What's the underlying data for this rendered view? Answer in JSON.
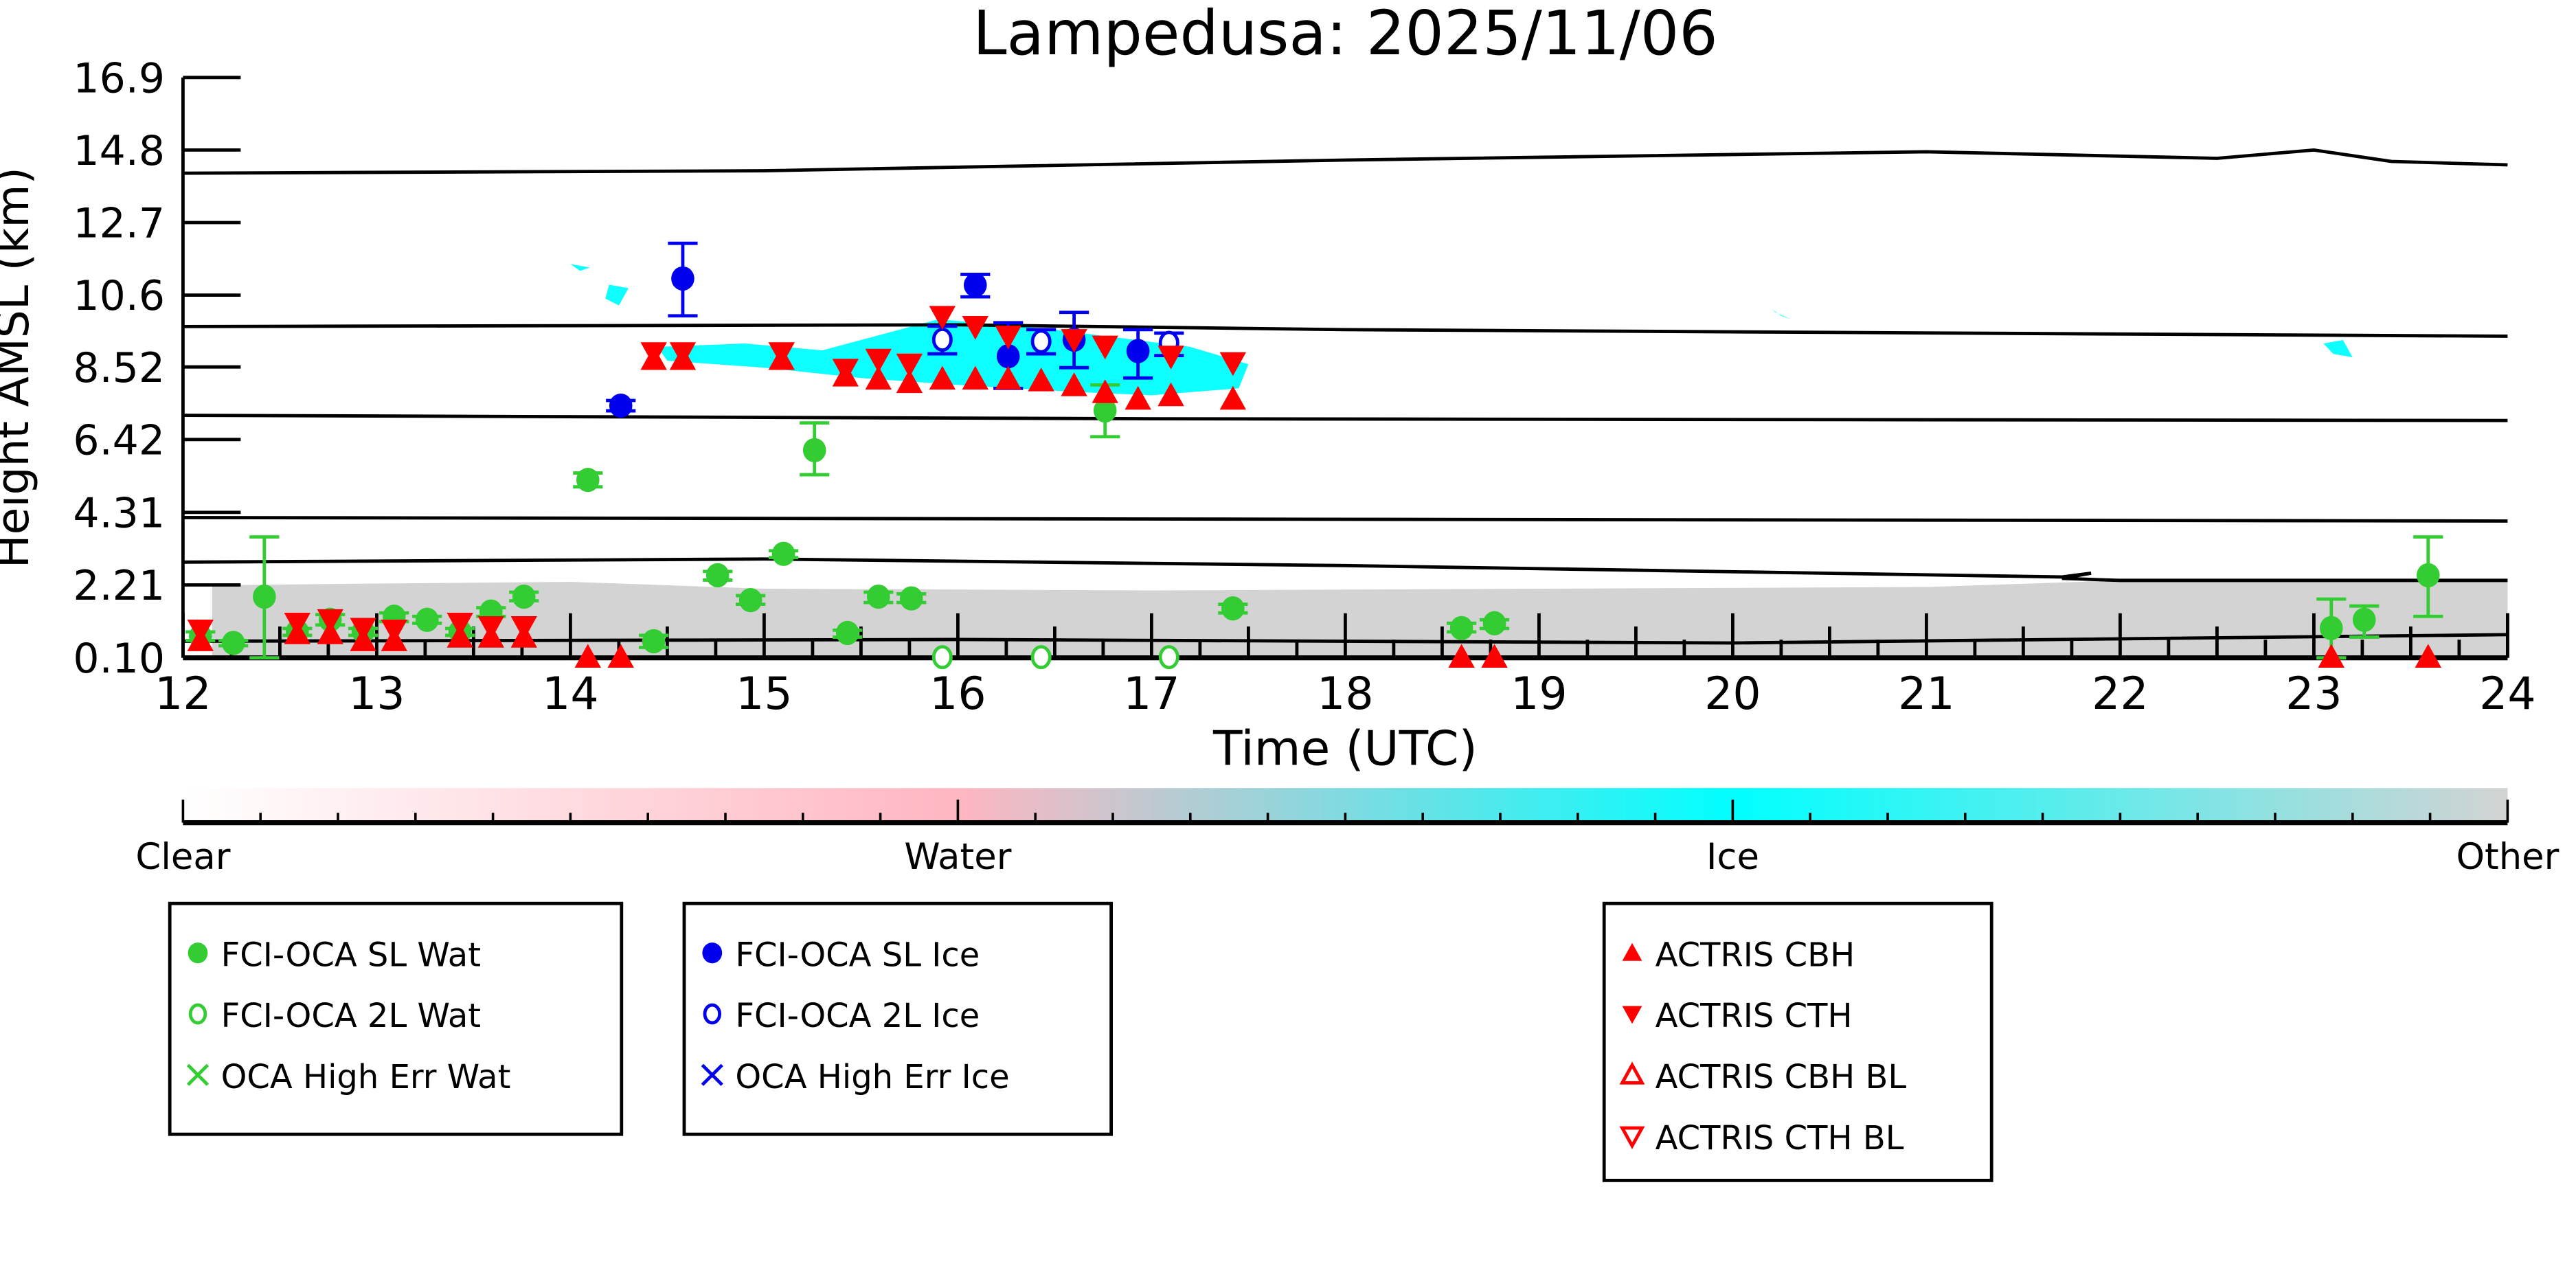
{
  "chart_data": {
    "type": "scatter",
    "title": "Lampedusa: 2025/11/06",
    "xlabel": "Time (UTC)",
    "ylabel": "Height AMSL (km)",
    "xlim": [
      12,
      24
    ],
    "ylim": [
      0.1,
      16.9
    ],
    "xticks": [
      "12",
      "13",
      "14",
      "15",
      "16",
      "17",
      "18",
      "19",
      "20",
      "21",
      "22",
      "23",
      "24"
    ],
    "yticks": [
      "0.10",
      "2.21",
      "4.31",
      "6.42",
      "8.52",
      "10.6",
      "12.7",
      "14.8",
      "16.9"
    ],
    "ytick_values": [
      0.1,
      2.21,
      4.31,
      6.42,
      8.52,
      10.6,
      12.7,
      14.8,
      16.9
    ],
    "colorbar": {
      "labels": [
        "Clear",
        "Water",
        "Ice",
        "Other"
      ],
      "colors": [
        "#ffffff",
        "#ffb6c1",
        "#00ffff",
        "#d3d3d3"
      ]
    },
    "cloud_mask_regions": [
      {
        "class": "Other",
        "color": "#d3d3d3",
        "points": [
          [
            12.15,
            0.1
          ],
          [
            12.15,
            2.2
          ],
          [
            13.0,
            2.25
          ],
          [
            14.0,
            2.3
          ],
          [
            15.0,
            2.1
          ],
          [
            17.0,
            2.05
          ],
          [
            19.0,
            2.1
          ],
          [
            21.0,
            2.15
          ],
          [
            21.8,
            2.3
          ],
          [
            22.0,
            2.4
          ],
          [
            24.0,
            2.4
          ],
          [
            24.0,
            0.1
          ]
        ]
      },
      {
        "class": "Ice",
        "color": "#00ffff",
        "points": [
          [
            14.45,
            9.1
          ],
          [
            14.9,
            9.2
          ],
          [
            15.3,
            9.0
          ],
          [
            15.9,
            9.9
          ],
          [
            16.5,
            9.6
          ],
          [
            17.2,
            9.1
          ],
          [
            17.5,
            8.6
          ],
          [
            17.45,
            7.9
          ],
          [
            17.0,
            7.7
          ],
          [
            16.6,
            7.8
          ],
          [
            16.0,
            8.0
          ],
          [
            15.5,
            8.2
          ],
          [
            15.0,
            8.5
          ],
          [
            14.5,
            8.7
          ]
        ]
      },
      {
        "class": "Ice",
        "color": "#00ffff",
        "points": [
          [
            14.0,
            11.5
          ],
          [
            14.1,
            11.4
          ],
          [
            14.05,
            11.3
          ]
        ]
      },
      {
        "class": "Ice",
        "color": "#00ffff",
        "points": [
          [
            14.2,
            10.9
          ],
          [
            14.3,
            10.8
          ],
          [
            14.25,
            10.3
          ],
          [
            14.18,
            10.5
          ]
        ]
      },
      {
        "class": "Ice",
        "color": "#00ffff",
        "points": [
          [
            23.05,
            9.2
          ],
          [
            23.15,
            9.3
          ],
          [
            23.2,
            8.8
          ],
          [
            23.1,
            8.9
          ]
        ]
      },
      {
        "class": "Ice",
        "color": "#00ffff",
        "points": [
          [
            20.2,
            10.2
          ],
          [
            20.25,
            10.0
          ],
          [
            20.3,
            9.9
          ],
          [
            20.22,
            10.1
          ]
        ]
      }
    ],
    "reference_lines": [
      [
        [
          12,
          14.13
        ],
        [
          15,
          14.2
        ],
        [
          18,
          14.51
        ],
        [
          21,
          14.75
        ],
        [
          22.5,
          14.56
        ],
        [
          23,
          14.8
        ],
        [
          23.4,
          14.47
        ],
        [
          24,
          14.37
        ]
      ],
      [
        [
          12,
          9.69
        ],
        [
          16,
          9.74
        ],
        [
          18,
          9.6
        ],
        [
          24,
          9.41
        ]
      ],
      [
        [
          12,
          7.12
        ],
        [
          17,
          7.02
        ],
        [
          24,
          6.97
        ]
      ],
      [
        [
          12,
          4.16
        ],
        [
          24,
          4.06
        ]
      ],
      [
        [
          12,
          2.87
        ],
        [
          15,
          2.96
        ],
        [
          18,
          2.77
        ],
        [
          21.7,
          2.44
        ],
        [
          21.85,
          2.55
        ],
        [
          21.7,
          2.4
        ],
        [
          22,
          2.34
        ],
        [
          24,
          2.34
        ]
      ],
      [
        [
          12,
          0.58
        ],
        [
          16,
          0.63
        ],
        [
          20,
          0.53
        ],
        [
          24,
          0.77
        ]
      ]
    ],
    "series": [
      {
        "name": "FCI-OCA SL Wat",
        "color": "#33cc33",
        "marker": "filled-circle",
        "points": [
          [
            12.09,
            0.72,
            0.6,
            0.85
          ],
          [
            12.26,
            0.53,
            0.45,
            0.6
          ],
          [
            12.42,
            1.87,
            0.1,
            3.6
          ],
          [
            12.59,
            0.86,
            0.75,
            0.95
          ],
          [
            12.76,
            1.2,
            1.05,
            1.35
          ],
          [
            12.93,
            0.86,
            0.75,
            0.95
          ],
          [
            13.09,
            1.29,
            1.15,
            1.4
          ],
          [
            13.26,
            1.2,
            1.1,
            1.3
          ],
          [
            13.43,
            0.86,
            0.75,
            0.95
          ],
          [
            13.59,
            1.44,
            1.3,
            1.55
          ],
          [
            13.76,
            1.87,
            1.75,
            2.0
          ],
          [
            14.09,
            5.25,
            5.05,
            5.45
          ],
          [
            14.43,
            0.58,
            0.4,
            0.75
          ],
          [
            14.76,
            2.49,
            2.35,
            2.6
          ],
          [
            14.93,
            1.77,
            1.65,
            1.9
          ],
          [
            15.1,
            3.11,
            3.0,
            3.2
          ],
          [
            15.26,
            6.11,
            5.4,
            6.9
          ],
          [
            15.43,
            0.82,
            0.7,
            0.9
          ],
          [
            15.59,
            1.87,
            1.7,
            2.0
          ],
          [
            15.76,
            1.82,
            1.7,
            1.95
          ],
          [
            16.76,
            7.26,
            6.5,
            8.0
          ],
          [
            17.42,
            1.53,
            1.4,
            1.65
          ],
          [
            18.6,
            0.96,
            0.85,
            1.1
          ],
          [
            18.77,
            1.1,
            0.95,
            1.2
          ],
          [
            23.09,
            0.96,
            0.1,
            1.8
          ],
          [
            23.26,
            1.2,
            0.7,
            1.6
          ],
          [
            23.59,
            2.49,
            1.3,
            3.6
          ]
        ]
      },
      {
        "name": "FCI-OCA 2L Wat",
        "color": "#33cc33",
        "marker": "open-circle",
        "points": [
          [
            15.92,
            0.12
          ],
          [
            16.43,
            0.12
          ],
          [
            17.09,
            0.12
          ]
        ]
      },
      {
        "name": "OCA High Err Wat",
        "color": "#33cc33",
        "marker": "x",
        "points": []
      },
      {
        "name": "FCI-OCA SL Ice",
        "color": "#0000ee",
        "marker": "filled-circle",
        "points": [
          [
            14.26,
            7.4,
            7.25,
            7.55
          ],
          [
            14.58,
            11.08,
            10.0,
            12.1
          ],
          [
            16.09,
            10.89,
            10.55,
            11.2
          ],
          [
            16.26,
            8.83,
            7.9,
            9.8
          ],
          [
            16.6,
            9.31,
            8.5,
            10.1
          ],
          [
            16.93,
            8.98,
            8.2,
            9.6
          ]
        ]
      },
      {
        "name": "FCI-OCA 2L Ice",
        "color": "#0000ee",
        "marker": "open-circle",
        "points": [
          [
            15.92,
            9.31,
            8.9,
            9.7
          ],
          [
            16.43,
            9.26,
            8.9,
            9.6
          ],
          [
            17.09,
            9.22,
            8.85,
            9.5
          ]
        ]
      },
      {
        "name": "OCA High Err Ice",
        "color": "#0000ee",
        "marker": "x",
        "points": []
      },
      {
        "name": "ACTRIS CBH",
        "color": "#ff0000",
        "marker": "triangle-up",
        "points": [
          [
            12.09,
            0.6
          ],
          [
            12.59,
            0.8
          ],
          [
            12.76,
            0.8
          ],
          [
            12.93,
            0.6
          ],
          [
            13.09,
            0.6
          ],
          [
            13.43,
            0.7
          ],
          [
            13.59,
            0.7
          ],
          [
            13.76,
            0.7
          ],
          [
            14.09,
            0.12
          ],
          [
            14.26,
            0.12
          ],
          [
            14.43,
            8.74
          ],
          [
            14.58,
            8.74
          ],
          [
            15.09,
            8.74
          ],
          [
            15.42,
            8.26
          ],
          [
            15.59,
            8.17
          ],
          [
            15.75,
            8.07
          ],
          [
            15.92,
            8.17
          ],
          [
            16.09,
            8.17
          ],
          [
            16.26,
            8.17
          ],
          [
            16.43,
            8.12
          ],
          [
            16.6,
            7.98
          ],
          [
            16.76,
            7.78
          ],
          [
            16.93,
            7.59
          ],
          [
            17.1,
            7.69
          ],
          [
            17.42,
            7.59
          ],
          [
            18.6,
            0.12
          ],
          [
            18.77,
            0.12
          ],
          [
            23.09,
            0.12
          ],
          [
            23.59,
            0.12
          ]
        ]
      },
      {
        "name": "ACTRIS CTH",
        "color": "#ff0000",
        "marker": "triangle-down",
        "points": [
          [
            12.09,
            0.9
          ],
          [
            12.59,
            1.1
          ],
          [
            12.76,
            1.2
          ],
          [
            12.93,
            0.95
          ],
          [
            13.09,
            0.9
          ],
          [
            13.43,
            1.1
          ],
          [
            13.59,
            1.0
          ],
          [
            13.76,
            1.0
          ],
          [
            14.43,
            8.93
          ],
          [
            14.58,
            8.93
          ],
          [
            15.09,
            8.93
          ],
          [
            15.42,
            8.45
          ],
          [
            15.59,
            8.74
          ],
          [
            15.75,
            8.6
          ],
          [
            15.92,
            9.98
          ],
          [
            16.09,
            9.69
          ],
          [
            16.26,
            9.41
          ],
          [
            16.6,
            9.31
          ],
          [
            16.76,
            9.12
          ],
          [
            17.1,
            8.83
          ],
          [
            17.42,
            8.64
          ]
        ]
      },
      {
        "name": "ACTRIS CBH BL",
        "color": "#ff0000",
        "marker": "open-triangle-up",
        "points": []
      },
      {
        "name": "ACTRIS CTH BL",
        "color": "#ff0000",
        "marker": "open-triangle-down",
        "points": []
      }
    ],
    "legend_groups": [
      [
        0,
        1,
        2
      ],
      [
        3,
        4,
        5
      ],
      [
        6,
        7,
        8,
        9
      ]
    ],
    "legend_placement": "below"
  }
}
